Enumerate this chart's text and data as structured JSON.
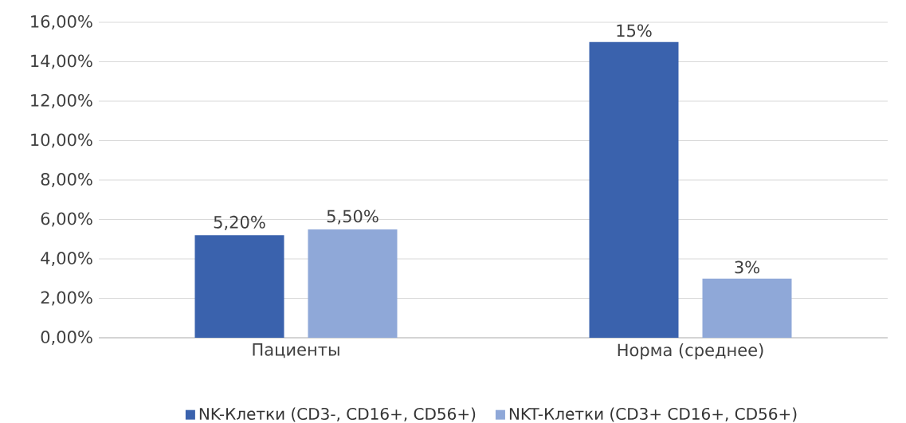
{
  "chart_data": {
    "type": "bar",
    "categories": [
      "Пациенты",
      "Норма (среднее)"
    ],
    "series": [
      {
        "name": "NK-Клетки (CD3-, CD16+, CD56+)",
        "color": "#3a62ad",
        "values": [
          5.2,
          15
        ],
        "value_labels": [
          "5,20%",
          "15%"
        ]
      },
      {
        "name": "NKT-Клетки (CD3+ CD16+, CD56+)",
        "color": "#8fa8d8",
        "values": [
          5.5,
          3
        ],
        "value_labels": [
          "5,50%",
          "3%"
        ]
      }
    ],
    "ylim": [
      0,
      16
    ],
    "yticks": [
      {
        "value": 0,
        "label": "0,00%"
      },
      {
        "value": 2,
        "label": "2,00%"
      },
      {
        "value": 4,
        "label": "4,00%"
      },
      {
        "value": 6,
        "label": "6,00%"
      },
      {
        "value": 8,
        "label": "8,00%"
      },
      {
        "value": 10,
        "label": "10,00%"
      },
      {
        "value": 12,
        "label": "12,00%"
      },
      {
        "value": 14,
        "label": "14,00%"
      },
      {
        "value": 16,
        "label": "16,00%"
      }
    ],
    "grid": "y",
    "legend": "bottom"
  }
}
